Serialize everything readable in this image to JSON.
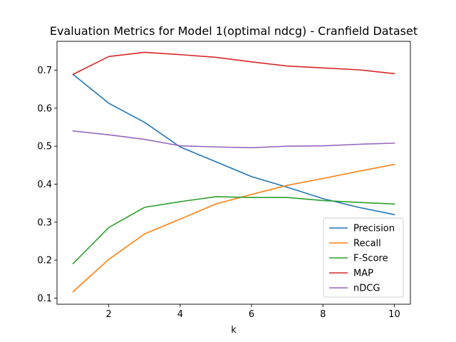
{
  "chart_data": {
    "type": "line",
    "title": "Evaluation Metrics for Model 1(optimal ndcg) - Cranfield Dataset",
    "xlabel": "k",
    "ylabel": "",
    "xlim": [
      0.55,
      10.45
    ],
    "ylim": [
      0.084,
      0.776
    ],
    "x": [
      1,
      2,
      3,
      4,
      5,
      6,
      7,
      8,
      9,
      10
    ],
    "xticks": [
      2,
      4,
      6,
      8,
      10
    ],
    "yticks": [
      0.1,
      0.2,
      0.3,
      0.4,
      0.5,
      0.6,
      0.7
    ],
    "ytick_labels": [
      "0.1",
      "0.2",
      "0.3",
      "0.4",
      "0.5",
      "0.6",
      "0.7"
    ],
    "grid": false,
    "legend_position": "lower-right",
    "series": [
      {
        "name": "Precision",
        "color": "#1f77b4",
        "values": [
          0.689,
          0.613,
          0.563,
          0.498,
          0.459,
          0.42,
          0.392,
          0.362,
          0.339,
          0.32
        ]
      },
      {
        "name": "Recall",
        "color": "#ff7f0e",
        "values": [
          0.117,
          0.202,
          0.269,
          0.308,
          0.348,
          0.373,
          0.397,
          0.415,
          0.434,
          0.452
        ]
      },
      {
        "name": "F-Score",
        "color": "#2ca02c",
        "values": [
          0.191,
          0.286,
          0.339,
          0.354,
          0.367,
          0.365,
          0.365,
          0.357,
          0.352,
          0.348
        ]
      },
      {
        "name": "MAP",
        "color": "#d62728",
        "values": [
          0.689,
          0.736,
          0.747,
          0.741,
          0.734,
          0.722,
          0.711,
          0.706,
          0.701,
          0.691
        ]
      },
      {
        "name": "nDCG",
        "color": "#9467bd",
        "values": [
          0.54,
          0.53,
          0.518,
          0.501,
          0.498,
          0.496,
          0.5,
          0.501,
          0.505,
          0.508
        ]
      }
    ]
  }
}
